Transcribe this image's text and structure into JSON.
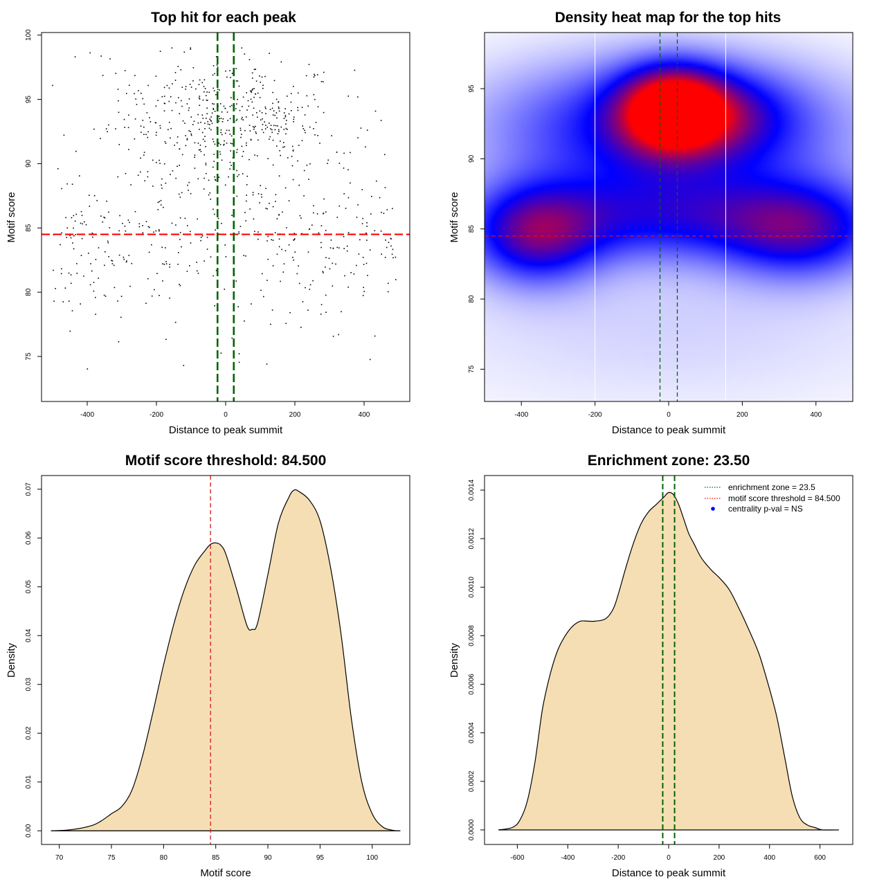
{
  "chart_data": [
    {
      "id": "scatter",
      "type": "scatter",
      "title": "Top hit for each peak",
      "xlabel": "Distance to peak summit",
      "ylabel": "Motif score",
      "xlim": [
        -532,
        532
      ],
      "ylim": [
        71.5,
        100.2
      ],
      "xticks": [
        -400,
        -200,
        0,
        200,
        400
      ],
      "yticks": [
        75,
        80,
        85,
        90,
        95,
        100
      ],
      "threshold": 84.5,
      "enrichment_zone": [
        -23.5,
        23.5
      ],
      "points": {
        "n": 900,
        "x_range": [
          -500,
          500
        ],
        "y_range": [
          72.7,
          99
        ],
        "upper_cluster": {
          "x_center": 0,
          "x_sd": 170,
          "y_center": 93.2,
          "y_sd": 2.5,
          "share": 0.55
        },
        "lower_cluster": {
          "x_center": 0,
          "x_sd": 270,
          "y_center": 84.5,
          "y_sd": 2.6,
          "share": 0.38
        },
        "tail": {
          "y_center": 79,
          "y_sd": 3,
          "share": 0.07
        }
      }
    },
    {
      "id": "heatmap",
      "type": "heatmap",
      "title": "Density heat map for the top hits",
      "xlabel": "Distance to peak summit",
      "ylabel": "Motif score",
      "xlim": [
        -500,
        500
      ],
      "ylim": [
        72.7,
        99
      ],
      "xticks": [
        -400,
        -200,
        0,
        200,
        400
      ],
      "yticks": [
        75,
        80,
        85,
        90,
        95
      ],
      "threshold": 84.5,
      "enrichment_zone": [
        -23.5,
        23.5
      ],
      "grid_lines_x": [
        -200,
        155
      ],
      "color_scale": [
        "#ffffff",
        "#0000ff",
        "#ff0000"
      ],
      "density_blobs": [
        {
          "x": 10,
          "y": 93.5,
          "sx": 95,
          "sy": 2.0,
          "w": 1.1
        },
        {
          "x": 150,
          "y": 93.2,
          "sx": 120,
          "sy": 2.0,
          "w": 0.28
        },
        {
          "x": 0,
          "y": 92.2,
          "sx": 330,
          "sy": 3.4,
          "w": 0.65
        },
        {
          "x": -360,
          "y": 84.5,
          "sx": 120,
          "sy": 2.4,
          "w": 0.62
        },
        {
          "x": 360,
          "y": 84.8,
          "sx": 150,
          "sy": 2.4,
          "w": 0.52
        },
        {
          "x": 0,
          "y": 85.8,
          "sx": 330,
          "sy": 2.2,
          "w": 0.48
        },
        {
          "x": 0,
          "y": 78.5,
          "sx": 500,
          "sy": 4.5,
          "w": 0.1
        }
      ]
    },
    {
      "id": "score_density",
      "type": "area",
      "title": "Motif score threshold: 84.500",
      "xlabel": "Motif score",
      "ylabel": "Density",
      "xlim": [
        68.3,
        103.6
      ],
      "ylim": [
        -0.0028,
        0.0728
      ],
      "xticks": [
        70,
        75,
        80,
        85,
        90,
        95,
        100
      ],
      "yticks": [
        0.0,
        0.01,
        0.02,
        0.03,
        0.04,
        0.05,
        0.06,
        0.07
      ],
      "ytick_labels": [
        "0.00",
        "0.01",
        "0.02",
        "0.03",
        "0.04",
        "0.05",
        "0.06",
        "0.07"
      ],
      "threshold": 84.5,
      "fill": "#f5deb3",
      "x": [
        69.2,
        71,
        73,
        74,
        75,
        76,
        77,
        78,
        79,
        80,
        81,
        82,
        83,
        84,
        84.5,
        85,
        85.5,
        86,
        87,
        88,
        88.5,
        89,
        90,
        91,
        92,
        92.5,
        93,
        94,
        95,
        96,
        97,
        98,
        99,
        100,
        101,
        102,
        102.7
      ],
      "y": [
        0.0,
        0.0002,
        0.001,
        0.002,
        0.0035,
        0.005,
        0.0085,
        0.0155,
        0.0245,
        0.034,
        0.0425,
        0.0495,
        0.0545,
        0.0575,
        0.0587,
        0.059,
        0.0585,
        0.0565,
        0.0495,
        0.042,
        0.0413,
        0.0425,
        0.0525,
        0.063,
        0.0683,
        0.0698,
        0.0695,
        0.0677,
        0.0635,
        0.054,
        0.0405,
        0.023,
        0.01,
        0.0035,
        0.0008,
        0.0001,
        0.0
      ]
    },
    {
      "id": "distance_density",
      "type": "area",
      "title": "Enrichment zone: 23.50",
      "xlabel": "Distance to peak summit",
      "ylabel": "Density",
      "xlim": [
        -730,
        730
      ],
      "ylim": [
        -6e-05,
        0.00146
      ],
      "xticks": [
        -600,
        -400,
        -200,
        0,
        200,
        400,
        600
      ],
      "yticks": [
        0.0,
        0.0002,
        0.0004,
        0.0006,
        0.0008,
        0.001,
        0.0012,
        0.0014
      ],
      "ytick_labels": [
        "0.0000",
        "0.0002",
        "0.0004",
        "0.0006",
        "0.0008",
        "0.0010",
        "0.0012",
        "0.0014"
      ],
      "enrichment_zone": [
        -23.5,
        23.5
      ],
      "fill": "#f5deb3",
      "x": [
        -675,
        -620,
        -590,
        -560,
        -530,
        -500,
        -470,
        -440,
        -410,
        -380,
        -350,
        -320,
        -290,
        -250,
        -220,
        -200,
        -170,
        -140,
        -110,
        -80,
        -50,
        -20,
        0,
        20,
        40,
        60,
        80,
        100,
        130,
        170,
        200,
        240,
        280,
        320,
        360,
        400,
        430,
        460,
        490,
        520,
        550,
        580,
        610,
        675
      ],
      "y": [
        0.0,
        1e-05,
        4e-05,
        0.00012,
        0.00028,
        0.0005,
        0.00064,
        0.00074,
        0.0008,
        0.00084,
        0.00086,
        0.00086,
        0.00086,
        0.00087,
        0.00091,
        0.00097,
        0.00108,
        0.00118,
        0.00126,
        0.00131,
        0.00134,
        0.00137,
        0.00139,
        0.00138,
        0.00134,
        0.00128,
        0.00122,
        0.00118,
        0.00112,
        0.00107,
        0.00104,
        0.00099,
        0.00091,
        0.00082,
        0.00072,
        0.00058,
        0.00046,
        0.0003,
        0.00014,
        5e-05,
        2e-05,
        1e-05,
        0.0,
        0.0
      ]
    }
  ],
  "legend": {
    "entries": [
      {
        "label": "enrichment zone = 23.5",
        "style": "dotted",
        "color": "#006400"
      },
      {
        "label": "motif score threshold = 84.500",
        "style": "dotted",
        "color": "#ff0000"
      },
      {
        "label": "centrality p-val = NS",
        "style": "point",
        "color": "#0000ff"
      }
    ]
  },
  "colors": {
    "threshold_line": "#ff0000",
    "zone_line": "#006400",
    "density_fill": "#f5deb3",
    "curve": "#000000"
  }
}
